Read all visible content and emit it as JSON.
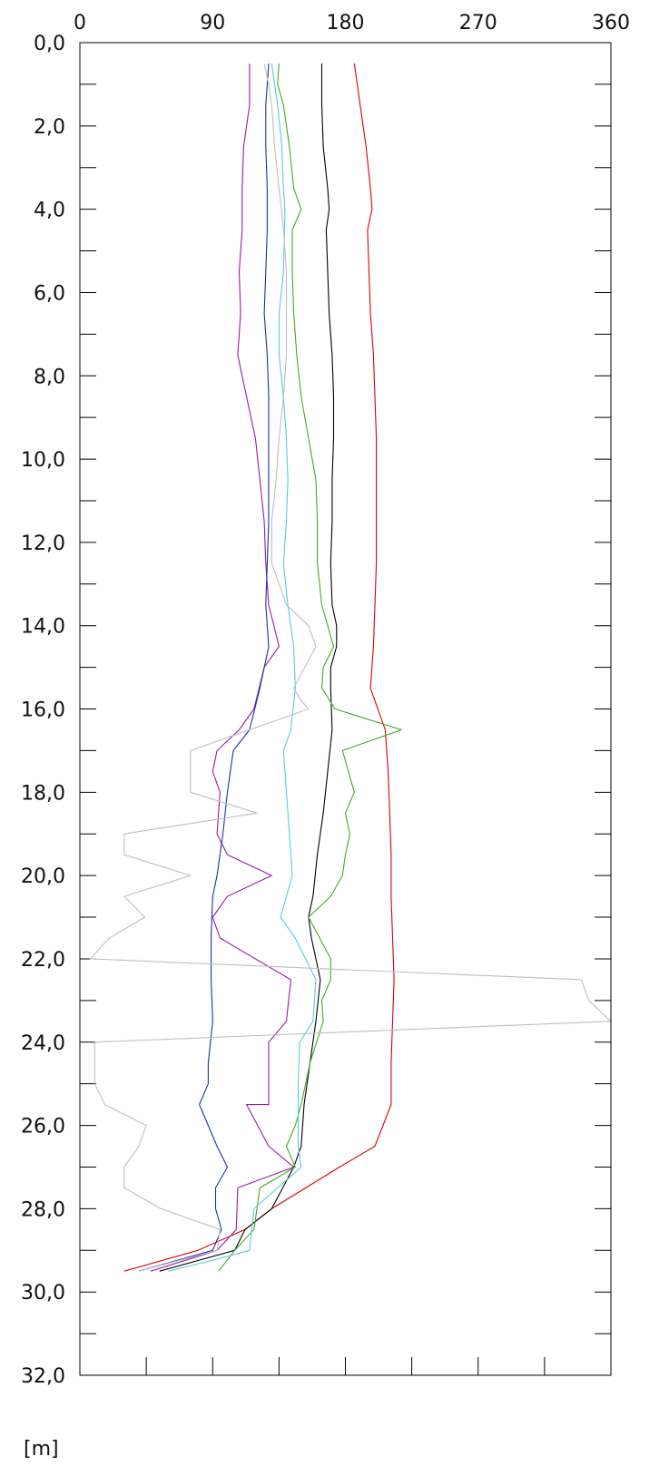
{
  "chart_data": {
    "type": "line",
    "orientation": "depth-profile",
    "title": "",
    "xlabel": "",
    "ylabel": "",
    "y_unit_label": "[m]",
    "xlim": [
      0,
      360
    ],
    "ylim": [
      0,
      32
    ],
    "y_inverted": true,
    "x_ticks": [
      0,
      90,
      180,
      270,
      360
    ],
    "x_tick_labels": [
      "0",
      "90",
      "180",
      "270",
      "360"
    ],
    "y_ticks": [
      0,
      2,
      4,
      6,
      8,
      10,
      12,
      14,
      16,
      18,
      20,
      22,
      24,
      26,
      28,
      30,
      32
    ],
    "y_tick_labels": [
      "0,0",
      "2,0",
      "4,0",
      "6,0",
      "8,0",
      "10,0",
      "12,0",
      "14,0",
      "16,0",
      "18,0",
      "20,0",
      "22,0",
      "24,0",
      "26,0",
      "28,0",
      "30,0",
      "32,0"
    ],
    "grid": false,
    "legend": "none",
    "series": [
      {
        "color": "#dd0000",
        "points": [
          [
            186,
            0.5
          ],
          [
            190,
            1.5
          ],
          [
            194,
            2.5
          ],
          [
            197,
            3.5
          ],
          [
            198,
            4
          ],
          [
            195,
            4.5
          ],
          [
            196,
            5.5
          ],
          [
            197,
            6.5
          ],
          [
            199,
            7.5
          ],
          [
            200,
            8.5
          ],
          [
            201,
            9.5
          ],
          [
            201,
            10.5
          ],
          [
            201,
            11.5
          ],
          [
            201,
            12.5
          ],
          [
            200,
            13.5
          ],
          [
            199,
            14.5
          ],
          [
            197,
            15.5
          ],
          [
            207,
            16.5
          ],
          [
            209,
            17.5
          ],
          [
            210,
            18.5
          ],
          [
            211,
            19.5
          ],
          [
            211,
            20.5
          ],
          [
            212,
            21.5
          ],
          [
            213,
            22.5
          ],
          [
            212,
            23.5
          ],
          [
            211,
            24.5
          ],
          [
            211,
            25.5
          ],
          [
            200,
            26.5
          ],
          [
            176,
            27
          ],
          [
            130,
            28
          ],
          [
            112,
            28.5
          ],
          [
            80,
            29
          ],
          [
            30,
            29.5
          ]
        ]
      },
      {
        "color": "#000000",
        "points": [
          [
            164,
            0.5
          ],
          [
            164,
            1.5
          ],
          [
            165,
            2.5
          ],
          [
            168,
            3.5
          ],
          [
            169,
            4
          ],
          [
            167,
            4.5
          ],
          [
            168,
            5.5
          ],
          [
            169,
            6.5
          ],
          [
            171,
            7.5
          ],
          [
            172,
            8.5
          ],
          [
            172,
            9.5
          ],
          [
            171,
            10.5
          ],
          [
            171,
            11.5
          ],
          [
            170,
            12.5
          ],
          [
            171,
            13.5
          ],
          [
            174,
            14
          ],
          [
            174,
            14.5
          ],
          [
            170,
            15
          ],
          [
            170,
            15.5
          ],
          [
            171,
            16.5
          ],
          [
            168,
            17.5
          ],
          [
            165,
            18.5
          ],
          [
            161,
            19.5
          ],
          [
            158,
            20.5
          ],
          [
            155,
            21
          ],
          [
            157,
            21.5
          ],
          [
            163,
            22.5
          ],
          [
            160,
            23.5
          ],
          [
            156,
            24.5
          ],
          [
            152,
            25.5
          ],
          [
            150,
            26.5
          ],
          [
            145,
            27
          ],
          [
            130,
            28
          ],
          [
            112,
            28.5
          ],
          [
            105,
            29
          ],
          [
            54,
            29.5
          ]
        ]
      },
      {
        "color": "#44aa22",
        "points": [
          [
            135,
            0.5
          ],
          [
            134,
            1
          ],
          [
            138,
            1.5
          ],
          [
            142,
            2.5
          ],
          [
            145,
            3.5
          ],
          [
            150,
            4
          ],
          [
            144,
            4.5
          ],
          [
            144,
            5.5
          ],
          [
            145,
            6.5
          ],
          [
            147,
            7.5
          ],
          [
            150,
            8.5
          ],
          [
            155,
            9.5
          ],
          [
            160,
            10.5
          ],
          [
            161,
            11.5
          ],
          [
            161,
            12.5
          ],
          [
            164,
            13.5
          ],
          [
            168,
            14
          ],
          [
            172,
            14.5
          ],
          [
            165,
            15
          ],
          [
            164,
            15.5
          ],
          [
            173,
            16
          ],
          [
            218,
            16.5
          ],
          [
            178,
            17
          ],
          [
            186,
            18
          ],
          [
            180,
            18.5
          ],
          [
            183,
            19
          ],
          [
            180,
            19.5
          ],
          [
            178,
            20
          ],
          [
            170,
            20.5
          ],
          [
            155,
            21
          ],
          [
            170,
            22
          ],
          [
            170,
            22.5
          ],
          [
            164,
            23
          ],
          [
            165,
            23.5
          ],
          [
            156,
            24.5
          ],
          [
            150,
            25.5
          ],
          [
            146,
            26
          ],
          [
            140,
            26.5
          ],
          [
            146,
            27
          ],
          [
            122,
            27.5
          ],
          [
            118,
            28.5
          ],
          [
            105,
            29
          ],
          [
            94,
            29.5
          ]
        ]
      },
      {
        "color": "#55ccdd",
        "points": [
          [
            130,
            0.5
          ],
          [
            134,
            1.5
          ],
          [
            137,
            2.5
          ],
          [
            138,
            3.5
          ],
          [
            139,
            4
          ],
          [
            138,
            5.5
          ],
          [
            135,
            6.5
          ],
          [
            135,
            7.5
          ],
          [
            138,
            8.5
          ],
          [
            140,
            9.5
          ],
          [
            141,
            10.5
          ],
          [
            140,
            11.5
          ],
          [
            138,
            12.5
          ],
          [
            141,
            13.5
          ],
          [
            145,
            14.5
          ],
          [
            146,
            15.5
          ],
          [
            143,
            16.5
          ],
          [
            138,
            17
          ],
          [
            140,
            18
          ],
          [
            142,
            19
          ],
          [
            144,
            20
          ],
          [
            140,
            20.5
          ],
          [
            136,
            21
          ],
          [
            146,
            21.5
          ],
          [
            160,
            22.5
          ],
          [
            158,
            23.5
          ],
          [
            149,
            24
          ],
          [
            148,
            25
          ],
          [
            148,
            26.5
          ],
          [
            150,
            27
          ],
          [
            118,
            28
          ],
          [
            115,
            29
          ],
          [
            94,
            29.2
          ],
          [
            60,
            29.5
          ]
        ]
      },
      {
        "color": "#9b1aa8",
        "points": [
          [
            115,
            0.5
          ],
          [
            115,
            1.5
          ],
          [
            113,
            2
          ],
          [
            111,
            2.5
          ],
          [
            110,
            3.5
          ],
          [
            110,
            4.5
          ],
          [
            108,
            5.5
          ],
          [
            109,
            6.5
          ],
          [
            107,
            7.5
          ],
          [
            113,
            8.5
          ],
          [
            119,
            9.5
          ],
          [
            122,
            10.5
          ],
          [
            125,
            11.5
          ],
          [
            126,
            12.5
          ],
          [
            128,
            13.5
          ],
          [
            135,
            14.5
          ],
          [
            125,
            15
          ],
          [
            118,
            16
          ],
          [
            108,
            16.5
          ],
          [
            93,
            17
          ],
          [
            90,
            17.5
          ],
          [
            95,
            18
          ],
          [
            93,
            19
          ],
          [
            100,
            19.5
          ],
          [
            130,
            20
          ],
          [
            100,
            20.5
          ],
          [
            90,
            21
          ],
          [
            95,
            21.5
          ],
          [
            143,
            22.5
          ],
          [
            140,
            23.5
          ],
          [
            128,
            24
          ],
          [
            128,
            25.5
          ],
          [
            113,
            25.5
          ],
          [
            128,
            26.5
          ],
          [
            145,
            27
          ],
          [
            107,
            27.5
          ],
          [
            106,
            28.5
          ],
          [
            93,
            29
          ],
          [
            48,
            29.5
          ]
        ]
      },
      {
        "color": "#1a33aa",
        "points": [
          [
            128,
            0.5
          ],
          [
            126,
            1.5
          ],
          [
            126,
            2.5
          ],
          [
            127,
            3.5
          ],
          [
            127,
            4.5
          ],
          [
            126,
            5.5
          ],
          [
            125,
            6.5
          ],
          [
            127,
            7.5
          ],
          [
            128,
            8.5
          ],
          [
            128,
            9.5
          ],
          [
            128,
            10.5
          ],
          [
            128,
            11.5
          ],
          [
            127,
            12.5
          ],
          [
            126,
            13.5
          ],
          [
            128,
            14.5
          ],
          [
            122,
            15.5
          ],
          [
            115,
            16.5
          ],
          [
            104,
            17
          ],
          [
            100,
            18
          ],
          [
            97,
            19
          ],
          [
            93,
            20
          ],
          [
            90,
            20.5
          ],
          [
            89,
            21.5
          ],
          [
            89,
            22.5
          ],
          [
            90,
            23.5
          ],
          [
            87,
            24.5
          ],
          [
            87,
            25
          ],
          [
            81,
            25.5
          ],
          [
            93,
            26.5
          ],
          [
            100,
            27
          ],
          [
            92,
            27.5
          ],
          [
            92,
            28
          ],
          [
            96,
            28.5
          ],
          [
            90,
            29
          ],
          [
            40,
            29.5
          ]
        ]
      },
      {
        "color": "#bfbfbf",
        "points": [
          [
            125,
            0.5
          ],
          [
            128,
            1
          ],
          [
            130,
            1.5
          ],
          [
            132,
            2.5
          ],
          [
            135,
            3.5
          ],
          [
            138,
            4.5
          ],
          [
            140,
            5.5
          ],
          [
            140,
            6.5
          ],
          [
            140,
            7.5
          ],
          [
            138,
            8.5
          ],
          [
            135,
            9.5
          ],
          [
            133,
            10.5
          ],
          [
            130,
            11.5
          ],
          [
            130,
            12.5
          ],
          [
            140,
            13.5
          ],
          [
            155,
            14
          ],
          [
            160,
            14.5
          ],
          [
            145,
            15.5
          ],
          [
            150,
            15.8
          ],
          [
            155,
            16
          ],
          [
            75,
            17
          ],
          [
            75,
            18
          ],
          [
            120,
            18.5
          ],
          [
            30,
            19
          ],
          [
            30,
            19.5
          ],
          [
            75,
            20
          ],
          [
            30,
            20.5
          ],
          [
            44,
            21
          ],
          [
            20,
            21.5
          ],
          [
            7,
            22
          ],
          [
            340,
            22.5
          ],
          [
            345,
            23
          ],
          [
            360,
            23.5
          ],
          [
            10,
            24
          ],
          [
            10,
            25
          ],
          [
            17,
            25.5
          ],
          [
            45,
            26
          ],
          [
            40,
            26.5
          ],
          [
            30,
            27
          ],
          [
            30,
            27.5
          ],
          [
            55,
            28
          ],
          [
            95,
            28.5
          ],
          [
            93,
            29
          ],
          [
            40,
            29.5
          ]
        ]
      }
    ]
  }
}
